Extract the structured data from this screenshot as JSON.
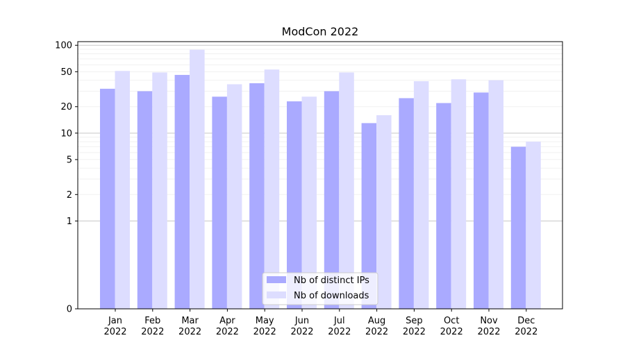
{
  "chart_data": {
    "type": "bar",
    "title": "ModCon 2022",
    "xlabel": "",
    "ylabel": "",
    "yscale": "symlog",
    "ylim": [
      0,
      110
    ],
    "yticks": [
      0,
      1,
      2,
      5,
      10,
      20,
      50,
      100
    ],
    "ytick_labels": [
      "0",
      "1",
      "2",
      "5",
      "10",
      "20",
      "50",
      "100"
    ],
    "categories": [
      "Jan\n2022",
      "Feb\n2022",
      "Mar\n2022",
      "Apr\n2022",
      "May\n2022",
      "Jun\n2022",
      "Jul\n2022",
      "Aug\n2022",
      "Sep\n2022",
      "Oct\n2022",
      "Nov\n2022",
      "Dec\n2022"
    ],
    "series": [
      {
        "name": "Nb of distinct IPs",
        "values": [
          32,
          30,
          46,
          26,
          37,
          23,
          30,
          13,
          25,
          22,
          29,
          7
        ],
        "color": "#aaaaff"
      },
      {
        "name": "Nb of downloads",
        "values": [
          51,
          49,
          89,
          36,
          53,
          26,
          49,
          16,
          39,
          41,
          40,
          8
        ],
        "color": "#ddddff"
      }
    ],
    "grid": true,
    "legend": "bottom-center"
  }
}
